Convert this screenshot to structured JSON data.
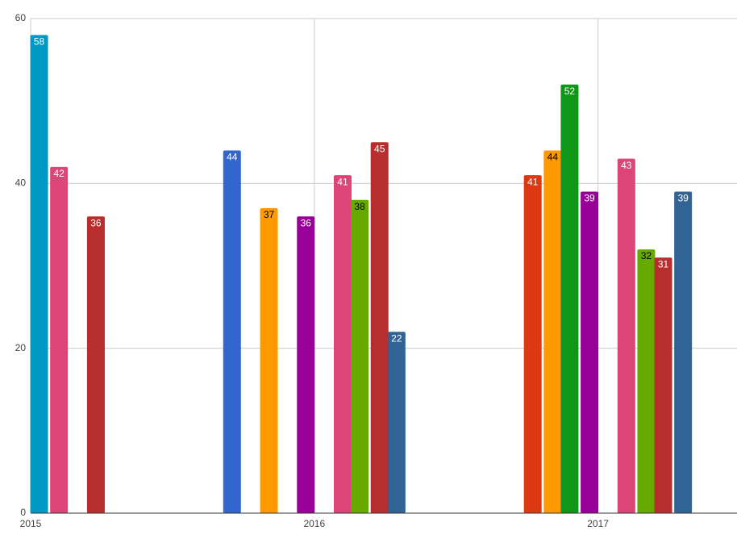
{
  "chart_data": {
    "type": "bar",
    "x": [
      2015.03,
      2015.1,
      2015.23,
      2015.71,
      2015.84,
      2015.97,
      2016.1,
      2016.16,
      2016.23,
      2016.29,
      2016.77,
      2016.84,
      2016.9,
      2016.97,
      2017.1,
      2017.17,
      2017.23,
      2017.3
    ],
    "values": [
      58,
      42,
      36,
      44,
      37,
      36,
      41,
      38,
      45,
      22,
      41,
      44,
      52,
      39,
      43,
      32,
      31,
      39
    ],
    "colors": [
      "#0099c6",
      "#dd4477",
      "#b82e2e",
      "#3366cc",
      "#ff9900",
      "#990099",
      "#dd4477",
      "#66aa00",
      "#b82e2e",
      "#316395",
      "#dc3912",
      "#ff9900",
      "#109618",
      "#990099",
      "#dd4477",
      "#66aa00",
      "#b82e2e",
      "#316395"
    ],
    "xlim": [
      2015,
      2017.49
    ],
    "xticks": [
      2015,
      2016,
      2017
    ],
    "ylim": [
      0,
      60
    ],
    "yticks": [
      0,
      20,
      40,
      60
    ],
    "grid": true
  }
}
